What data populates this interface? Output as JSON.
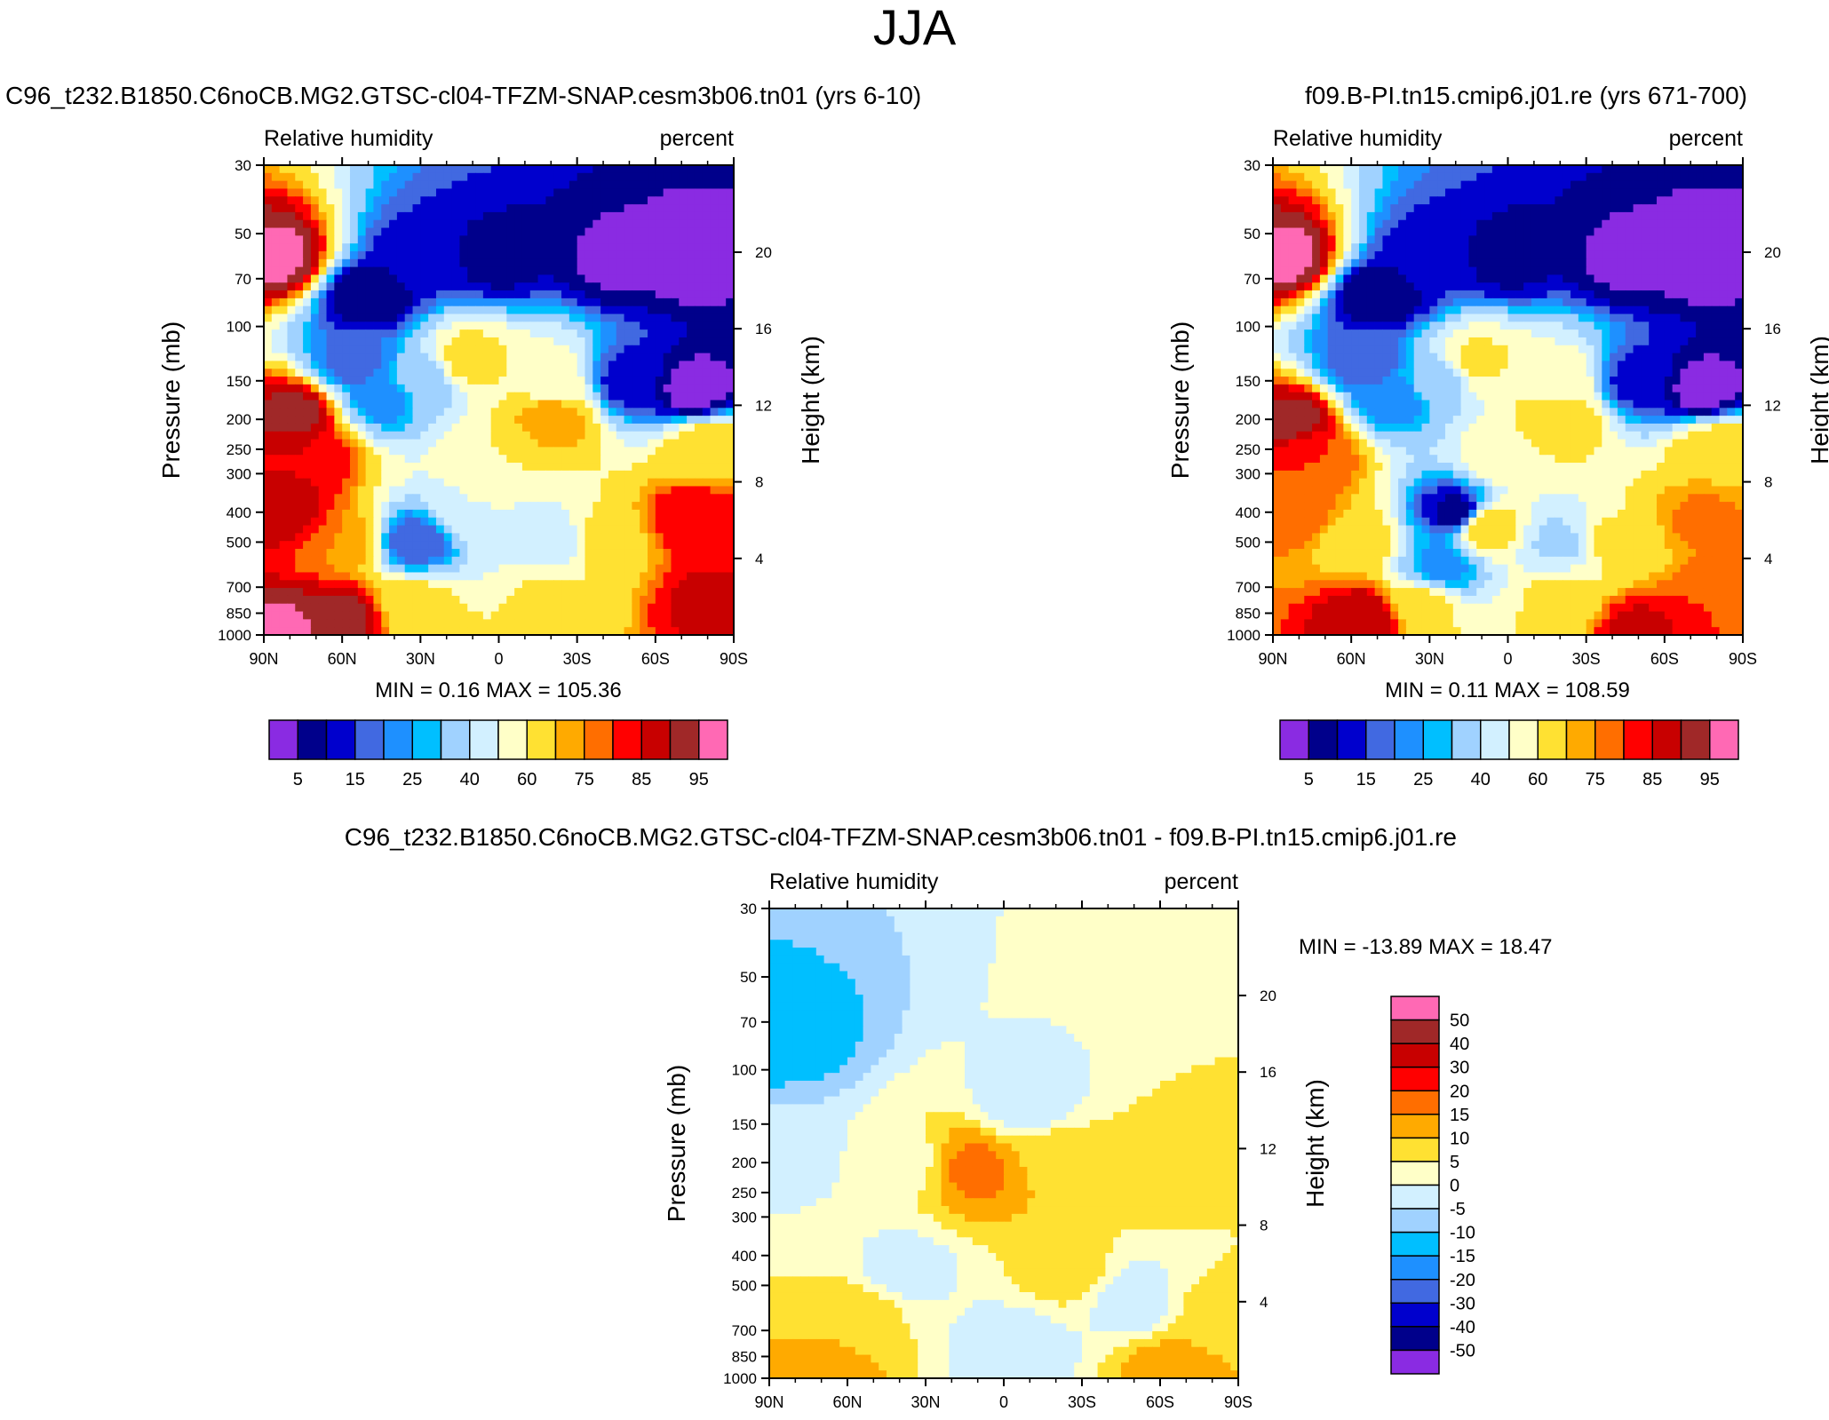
{
  "page": {
    "title": "JJA"
  },
  "panels": [
    {
      "id": "left",
      "case_title": "C96_t232.B1850.C6noCB.MG2.GTSC-cl04-TFZM-SNAP.cesm3b06.tn01 (yrs 6-10)",
      "variable": "Relative humidity",
      "units": "percent",
      "stats": "MIN =   0.16  MAX = 105.36",
      "ylabel": "Pressure (mb)",
      "y2label": "Height (km)",
      "colorbar": {
        "labels": [
          "5",
          "15",
          "25",
          "40",
          "60",
          "75",
          "85",
          "95"
        ]
      }
    },
    {
      "id": "right",
      "case_title": "f09.B-PI.tn15.cmip6.j01.re (yrs 671-700)",
      "variable": "Relative humidity",
      "units": "percent",
      "stats": "MIN =   0.11  MAX = 108.59",
      "ylabel": "Pressure (mb)",
      "y2label": "Height (km)",
      "colorbar": {
        "labels": [
          "5",
          "15",
          "25",
          "40",
          "60",
          "75",
          "85",
          "95"
        ]
      }
    },
    {
      "id": "diff",
      "case_title": "C96_t232.B1850.C6noCB.MG2.GTSC-cl04-TFZM-SNAP.cesm3b06.tn01 - f09.B-PI.tn15.cmip6.j01.re",
      "variable": "Relative humidity",
      "units": "percent",
      "stats": "MIN = -13.89  MAX =  18.47",
      "ylabel": "Pressure (mb)",
      "y2label": "Height (km)",
      "colorbar": {
        "labels": [
          "50",
          "40",
          "30",
          "20",
          "15",
          "10",
          "5",
          "0",
          "-5",
          "-10",
          "-15",
          "-20",
          "-30",
          "-40",
          "-50"
        ]
      }
    }
  ],
  "chart_data": [
    {
      "type": "heatmap",
      "title": "C96_t232.B1850.C6noCB.MG2.GTSC-cl04-TFZM-SNAP.cesm3b06.tn01 (yrs 6-10)",
      "variable": "Relative humidity",
      "units": "percent",
      "xlabel": "",
      "ylabel": "Pressure (mb)",
      "y2label": "Height (km)",
      "x_ticks": [
        "90N",
        "60N",
        "30N",
        "0",
        "30S",
        "60S",
        "90S"
      ],
      "y_ticks": [
        30,
        50,
        70,
        100,
        150,
        200,
        250,
        300,
        400,
        500,
        700,
        850,
        1000
      ],
      "y_range": [
        1000,
        30
      ],
      "y_scale": "log",
      "y2_ticks": [
        20,
        16,
        12,
        8,
        4
      ],
      "min": 0.16,
      "max": 105.36,
      "levels": [
        5,
        10,
        15,
        20,
        25,
        30,
        40,
        50,
        60,
        70,
        75,
        80,
        85,
        90,
        95
      ],
      "colors": [
        "#8a2be2",
        "#00008b",
        "#0000cd",
        "#4169e1",
        "#1e90ff",
        "#00bfff",
        "#a0d2ff",
        "#d2f0ff",
        "#ffffc8",
        "#ffe132",
        "#ffaa00",
        "#ff6e00",
        "#ff0000",
        "#c80000",
        "#a02828",
        "#ff69b4"
      ],
      "field_features": [
        {
          "lat": -75,
          "p": 60,
          "value": 2
        },
        {
          "lat": -45,
          "p": 60,
          "value": 4
        },
        {
          "lat": 0,
          "p": 60,
          "value": 8
        },
        {
          "lat": 30,
          "p": 60,
          "value": 12
        },
        {
          "lat": 50,
          "p": 80,
          "value": 5
        },
        {
          "lat": 85,
          "p": 60,
          "value": 97
        },
        {
          "lat": -75,
          "p": 160,
          "value": 2
        },
        {
          "lat": -50,
          "p": 150,
          "value": 12
        },
        {
          "lat": -20,
          "p": 150,
          "value": 55
        },
        {
          "lat": 12,
          "p": 130,
          "value": 65
        },
        {
          "lat": 28,
          "p": 150,
          "value": 35
        },
        {
          "lat": 45,
          "p": 170,
          "value": 22
        },
        {
          "lat": 55,
          "p": 130,
          "value": 17
        },
        {
          "lat": 78,
          "p": 190,
          "value": 92
        },
        {
          "lat": -80,
          "p": 250,
          "value": 68
        },
        {
          "lat": -20,
          "p": 200,
          "value": 75
        },
        {
          "lat": 0,
          "p": 260,
          "value": 60
        },
        {
          "lat": 72,
          "p": 260,
          "value": 85
        },
        {
          "lat": -75,
          "p": 420,
          "value": 85
        },
        {
          "lat": -40,
          "p": 500,
          "value": 65
        },
        {
          "lat": -20,
          "p": 500,
          "value": 42
        },
        {
          "lat": 10,
          "p": 400,
          "value": 50
        },
        {
          "lat": 32,
          "p": 500,
          "value": 16
        },
        {
          "lat": 60,
          "p": 500,
          "value": 75
        },
        {
          "lat": 80,
          "p": 400,
          "value": 88
        },
        {
          "lat": -80,
          "p": 780,
          "value": 86
        },
        {
          "lat": -20,
          "p": 760,
          "value": 62
        },
        {
          "lat": 32,
          "p": 800,
          "value": 63
        },
        {
          "lat": 60,
          "p": 880,
          "value": 92
        },
        {
          "lat": 82,
          "p": 980,
          "value": 97
        }
      ]
    },
    {
      "type": "heatmap",
      "title": "f09.B-PI.tn15.cmip6.j01.re (yrs 671-700)",
      "variable": "Relative humidity",
      "units": "percent",
      "xlabel": "",
      "ylabel": "Pressure (mb)",
      "y2label": "Height (km)",
      "x_ticks": [
        "90N",
        "60N",
        "30N",
        "0",
        "30S",
        "60S",
        "90S"
      ],
      "y_ticks": [
        30,
        50,
        70,
        100,
        150,
        200,
        250,
        300,
        400,
        500,
        700,
        850,
        1000
      ],
      "y_range": [
        1000,
        30
      ],
      "y_scale": "log",
      "y2_ticks": [
        20,
        16,
        12,
        8,
        4
      ],
      "min": 0.11,
      "max": 108.59,
      "levels": [
        5,
        10,
        15,
        20,
        25,
        30,
        40,
        50,
        60,
        70,
        75,
        80,
        85,
        90,
        95
      ],
      "colors": [
        "#8a2be2",
        "#00008b",
        "#0000cd",
        "#4169e1",
        "#1e90ff",
        "#00bfff",
        "#a0d2ff",
        "#d2f0ff",
        "#ffffc8",
        "#ffe132",
        "#ffaa00",
        "#ff6e00",
        "#ff0000",
        "#c80000",
        "#a02828",
        "#ff69b4"
      ],
      "field_features": [
        {
          "lat": -75,
          "p": 60,
          "value": 2
        },
        {
          "lat": -45,
          "p": 60,
          "value": 4
        },
        {
          "lat": 0,
          "p": 60,
          "value": 8
        },
        {
          "lat": 30,
          "p": 60,
          "value": 12
        },
        {
          "lat": 50,
          "p": 80,
          "value": 5
        },
        {
          "lat": 85,
          "p": 60,
          "value": 97
        },
        {
          "lat": -75,
          "p": 160,
          "value": 2
        },
        {
          "lat": -50,
          "p": 150,
          "value": 12
        },
        {
          "lat": -20,
          "p": 150,
          "value": 55
        },
        {
          "lat": 12,
          "p": 130,
          "value": 62
        },
        {
          "lat": 28,
          "p": 150,
          "value": 33
        },
        {
          "lat": 45,
          "p": 170,
          "value": 20
        },
        {
          "lat": 55,
          "p": 130,
          "value": 16
        },
        {
          "lat": 82,
          "p": 200,
          "value": 92
        },
        {
          "lat": -80,
          "p": 250,
          "value": 68
        },
        {
          "lat": -20,
          "p": 200,
          "value": 68
        },
        {
          "lat": 0,
          "p": 260,
          "value": 58
        },
        {
          "lat": 74,
          "p": 260,
          "value": 80
        },
        {
          "lat": -75,
          "p": 420,
          "value": 76
        },
        {
          "lat": -40,
          "p": 500,
          "value": 62
        },
        {
          "lat": -20,
          "p": 500,
          "value": 38
        },
        {
          "lat": 8,
          "p": 450,
          "value": 68
        },
        {
          "lat": 20,
          "p": 400,
          "value": 8
        },
        {
          "lat": 25,
          "p": 600,
          "value": 22
        },
        {
          "lat": 60,
          "p": 500,
          "value": 68
        },
        {
          "lat": 82,
          "p": 400,
          "value": 80
        },
        {
          "lat": -80,
          "p": 780,
          "value": 80
        },
        {
          "lat": -20,
          "p": 760,
          "value": 62
        },
        {
          "lat": 32,
          "p": 800,
          "value": 62
        },
        {
          "lat": 55,
          "p": 880,
          "value": 90
        },
        {
          "lat": -50,
          "p": 950,
          "value": 86
        }
      ]
    },
    {
      "type": "heatmap",
      "title": "C96_t232.B1850.C6noCB.MG2.GTSC-cl04-TFZM-SNAP.cesm3b06.tn01 - f09.B-PI.tn15.cmip6.j01.re",
      "variable": "Relative humidity",
      "units": "percent",
      "xlabel": "",
      "ylabel": "Pressure (mb)",
      "y2label": "Height (km)",
      "x_ticks": [
        "90N",
        "60N",
        "30N",
        "0",
        "30S",
        "60S",
        "90S"
      ],
      "y_ticks": [
        30,
        50,
        70,
        100,
        150,
        200,
        250,
        300,
        400,
        500,
        700,
        850,
        1000
      ],
      "y_range": [
        1000,
        30
      ],
      "y_scale": "log",
      "y2_ticks": [
        20,
        16,
        12,
        8,
        4
      ],
      "min": -13.89,
      "max": 18.47,
      "levels": [
        -50,
        -40,
        -30,
        -20,
        -15,
        -10,
        -5,
        0,
        5,
        10,
        15,
        20,
        30,
        40,
        50
      ],
      "colors": [
        "#8a2be2",
        "#00008b",
        "#0000cd",
        "#4169e1",
        "#1e90ff",
        "#00bfff",
        "#a0d2ff",
        "#d2f0ff",
        "#ffffc8",
        "#ffe132",
        "#ffaa00",
        "#ff6e00",
        "#ff0000",
        "#c80000",
        "#a02828",
        "#ff69b4"
      ],
      "field_features": [
        {
          "lat": 85,
          "p": 80,
          "value": -12
        },
        {
          "lat": 85,
          "p": 180,
          "value": -4
        },
        {
          "lat": -10,
          "p": 130,
          "value": -3
        },
        {
          "lat": -55,
          "p": 210,
          "value": 7
        },
        {
          "lat": -20,
          "p": 190,
          "value": 8
        },
        {
          "lat": 10,
          "p": 210,
          "value": 16
        },
        {
          "lat": 40,
          "p": 200,
          "value": 3
        },
        {
          "lat": -80,
          "p": 600,
          "value": 6
        },
        {
          "lat": -50,
          "p": 560,
          "value": -3
        },
        {
          "lat": -25,
          "p": 450,
          "value": 7
        },
        {
          "lat": -5,
          "p": 800,
          "value": -3
        },
        {
          "lat": 40,
          "p": 450,
          "value": -2
        },
        {
          "lat": 55,
          "p": 600,
          "value": 7
        },
        {
          "lat": 75,
          "p": 500,
          "value": 5
        },
        {
          "lat": 70,
          "p": 980,
          "value": 13
        },
        {
          "lat": -65,
          "p": 920,
          "value": 12
        }
      ]
    }
  ]
}
